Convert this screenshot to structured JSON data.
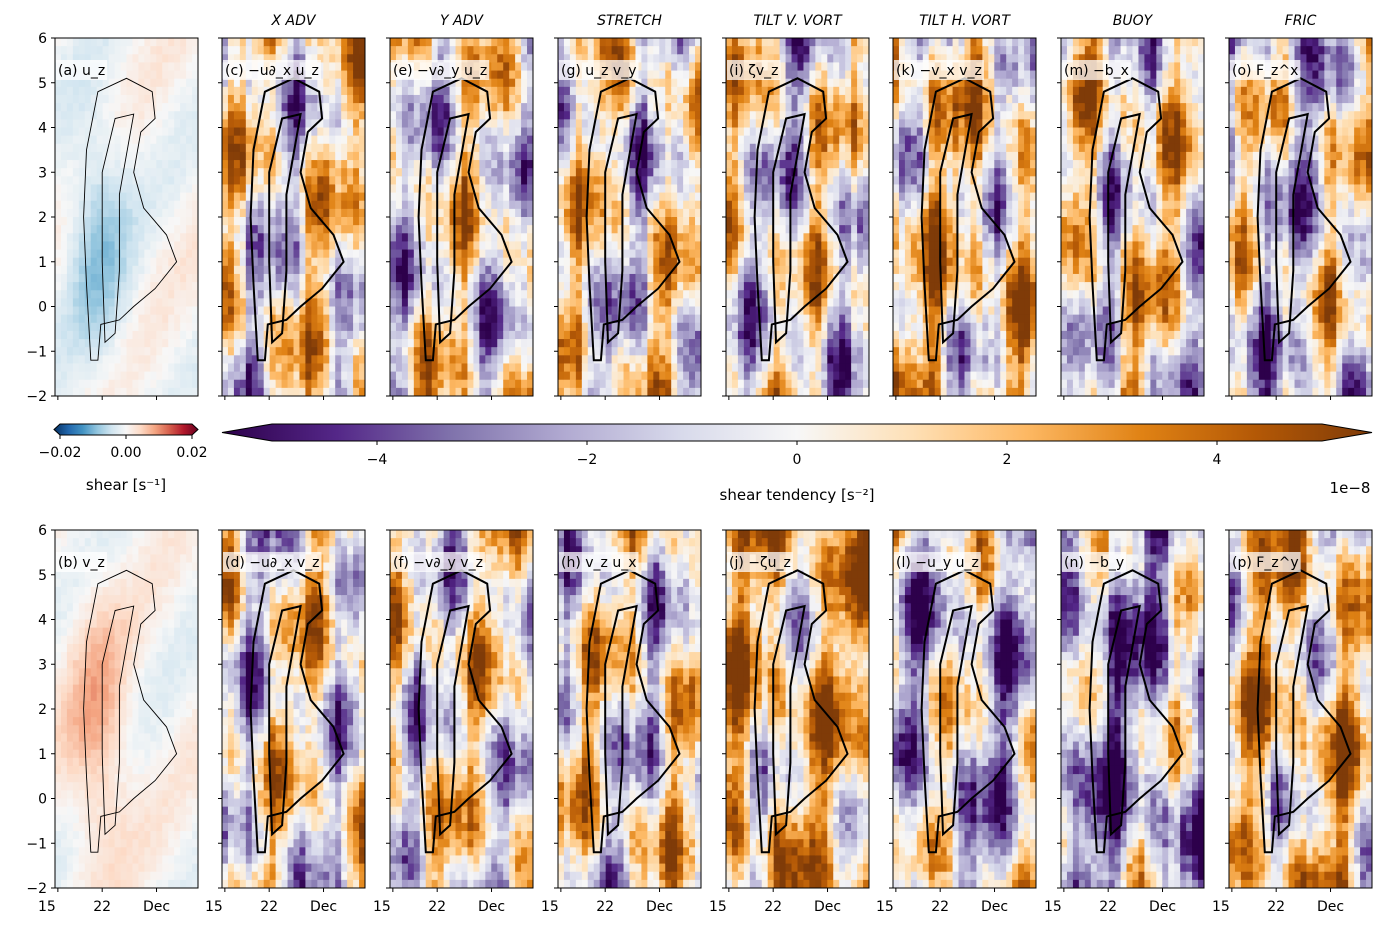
{
  "colors": {
    "rdbu": [
      "#053061",
      "#2166ac",
      "#4393c3",
      "#92c5de",
      "#d1e5f0",
      "#f7f7f7",
      "#fddbc7",
      "#f4a582",
      "#d6604d",
      "#b2182b",
      "#67001f"
    ],
    "puor": [
      "#2d004b",
      "#542788",
      "#8073ac",
      "#b2abd2",
      "#d8daeb",
      "#f7f7f7",
      "#fee0b6",
      "#fdb863",
      "#e08214",
      "#b35806",
      "#7f3b08"
    ]
  },
  "column_titles": [
    "X ADV",
    "Y ADV",
    "STRETCH",
    "TILT V. VORT",
    "TILT H. VORT",
    "BUOY",
    "FRIC"
  ],
  "panels_top": [
    {
      "label": "(a) u_z",
      "kind": "shear",
      "seed": 3
    },
    {
      "label": "(c) −u∂_x u_z",
      "kind": "tend",
      "seed": 11,
      "bias": 0.2
    },
    {
      "label": "(e) −v∂_y u_z",
      "kind": "tend",
      "seed": 17,
      "bias": 0.1
    },
    {
      "label": "(g) u_z v_y",
      "kind": "tend",
      "seed": 23,
      "bias": 0.1
    },
    {
      "label": "(i) ζv_z",
      "kind": "tend",
      "seed": 29,
      "bias": 0.0
    },
    {
      "label": "(k) −v_x v_z",
      "kind": "tend",
      "seed": 31,
      "bias": 0.6
    },
    {
      "label": "(m) −b_x",
      "kind": "tend",
      "seed": 37,
      "bias": 0.3
    },
    {
      "label": "(o) F_z^x",
      "kind": "tend",
      "seed": 41,
      "bias": -0.3
    }
  ],
  "panels_bottom": [
    {
      "label": "(b) v_z",
      "kind": "shear",
      "seed": 5
    },
    {
      "label": "(d) −u∂_x v_z",
      "kind": "tend",
      "seed": 43,
      "bias": 0.0
    },
    {
      "label": "(f) −v∂_y v_z",
      "kind": "tend",
      "seed": 47,
      "bias": 0.2
    },
    {
      "label": "(h) v_z u_x",
      "kind": "tend",
      "seed": 53,
      "bias": 0.2
    },
    {
      "label": "(j) −ζu_z",
      "kind": "tend",
      "seed": 59,
      "bias": 0.9
    },
    {
      "label": "(l) −u_y u_z",
      "kind": "tend",
      "seed": 61,
      "bias": -0.5
    },
    {
      "label": "(n) −b_y",
      "kind": "tend",
      "seed": 67,
      "bias": -1.0
    },
    {
      "label": "(p) F_z^y",
      "kind": "tend",
      "seed": 71,
      "bias": 0.7
    }
  ],
  "chart_data": {
    "type": "heatmap",
    "y_ticks": [
      6,
      5,
      4,
      3,
      2,
      1,
      0,
      -1,
      -2
    ],
    "y_tick_labels": [
      "6",
      "5",
      "4",
      "3",
      "2",
      "1",
      "0",
      "−1",
      "−2"
    ],
    "ylim": [
      -2,
      6
    ],
    "x_tick_labels": [
      "15",
      "22",
      "Dec"
    ],
    "shear_colorbar": {
      "ticks": [
        -0.02,
        0.0,
        0.02
      ],
      "tick_labels": [
        "−0.02",
        "0.00",
        "0.02"
      ],
      "label": "shear [s⁻¹]"
    },
    "tendency_colorbar": {
      "ticks": [
        -4,
        -2,
        0,
        2,
        4
      ],
      "tick_labels": [
        "−4",
        "−2",
        "0",
        "2",
        "4"
      ],
      "range": [
        -5,
        5
      ],
      "label": "shear tendency [s⁻²]",
      "offset_text": "1e−8"
    }
  }
}
